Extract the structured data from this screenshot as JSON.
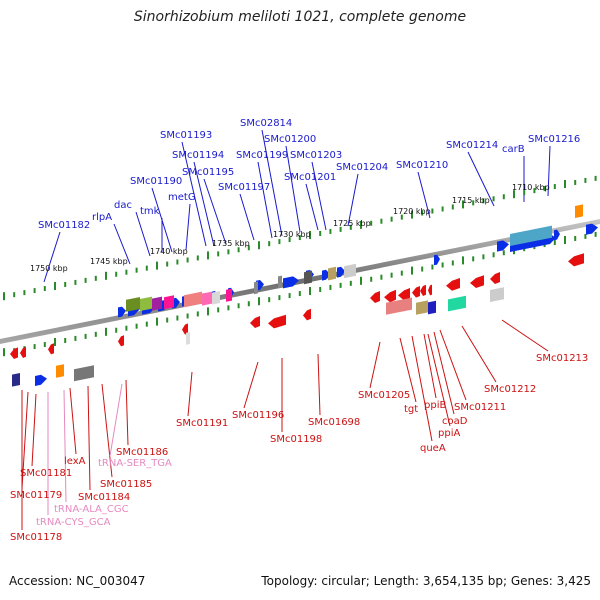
{
  "title": "Sinorhizobium meliloti 1021, complete genome",
  "footer": {
    "accession": "Accession: NC_003047",
    "summary": "Topology: circular; Length: 3,654,135 bp; Genes: 3,425"
  },
  "scale_labels": [
    "1750 kbp",
    "1745 kbp",
    "1740 kbp",
    "1735 kbp",
    "1730 kbp",
    "1725 kbp",
    "1720 kbp",
    "1715 kbp",
    "1710 kbp"
  ],
  "top_labels": [
    "SMc01182",
    "rlpA",
    "dac",
    "tmk",
    "SMc01190",
    "metG",
    "SMc01193",
    "SMc01194",
    "SMc01195",
    "SMc01197",
    "SMc02814",
    "SMc01199",
    "SMc01200",
    "SMc01201",
    "SMc01203",
    "SMc01204",
    "SMc01210",
    "SMc01214",
    "carB",
    "SMc01216"
  ],
  "bottom_labels": [
    "SMc01178",
    "SMc01179",
    "tRNA-CYS_GCA",
    "SMc01181",
    "tRNA-ALA_CGC",
    "lexA",
    "SMc01184",
    "SMc01185",
    "tRNA-SER_TGA",
    "SMc01186",
    "SMc01191",
    "SMc01196",
    "SMc01198",
    "SMc01698",
    "SMc01205",
    "tgt",
    "queA",
    "ppiB",
    "ppiA",
    "coaD",
    "SMc01211",
    "SMc01212",
    "SMc01213"
  ],
  "colors": {
    "forward_label": "#1a1acc",
    "reverse_label": "#cc1111",
    "trna_label": "#e58ac0",
    "forward_gene": "#0a2ee6",
    "reverse_gene": "#e60f0f",
    "scale_tick": "#2a8a2a",
    "backbone": "#8a8a8a"
  }
}
